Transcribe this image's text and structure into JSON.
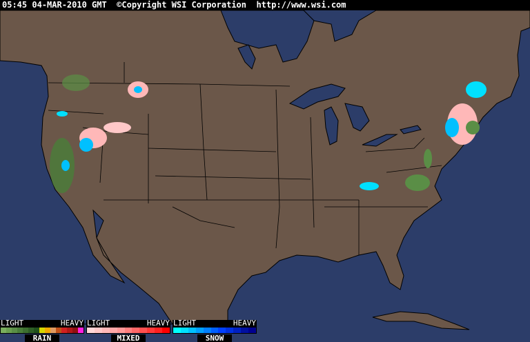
{
  "header": {
    "text": "05:45 04-MAR-2010 GMT  ©Copyright WSI Corporation  http://www.wsi.com"
  },
  "colors": {
    "ocean": "#2c3d69",
    "land": "#6b5749",
    "border": "#000000"
  },
  "legend": [
    {
      "low": "LIGHT",
      "high": "HEAVY",
      "name": "RAIN",
      "colors": [
        "#7aae5e",
        "#6a9e50",
        "#5a8e46",
        "#4a7e3a",
        "#3c6e30",
        "#2e5e26",
        "#20501c",
        "#d6d600",
        "#f0a800",
        "#e09a60",
        "#c05018",
        "#d02020",
        "#b01818",
        "#901010",
        "#ff20e0"
      ]
    },
    {
      "low": "LIGHT",
      "high": "HEAVY",
      "name": "MIXED",
      "colors": [
        "#ffd8d8",
        "#ffc8c8",
        "#ffb8b8",
        "#ffa8a8",
        "#ff9898",
        "#ff8080",
        "#ff6868",
        "#ff5050",
        "#ff3838",
        "#ff2020",
        "#ff0000"
      ]
    },
    {
      "low": "LIGHT",
      "high": "HEAVY",
      "name": "SNOW",
      "colors": [
        "#00ffff",
        "#00e0ff",
        "#00c0ff",
        "#00a0ff",
        "#0080ff",
        "#0060ff",
        "#0040ff",
        "#0030e0",
        "#0020c0",
        "#0010a0",
        "#000090"
      ]
    }
  ]
}
